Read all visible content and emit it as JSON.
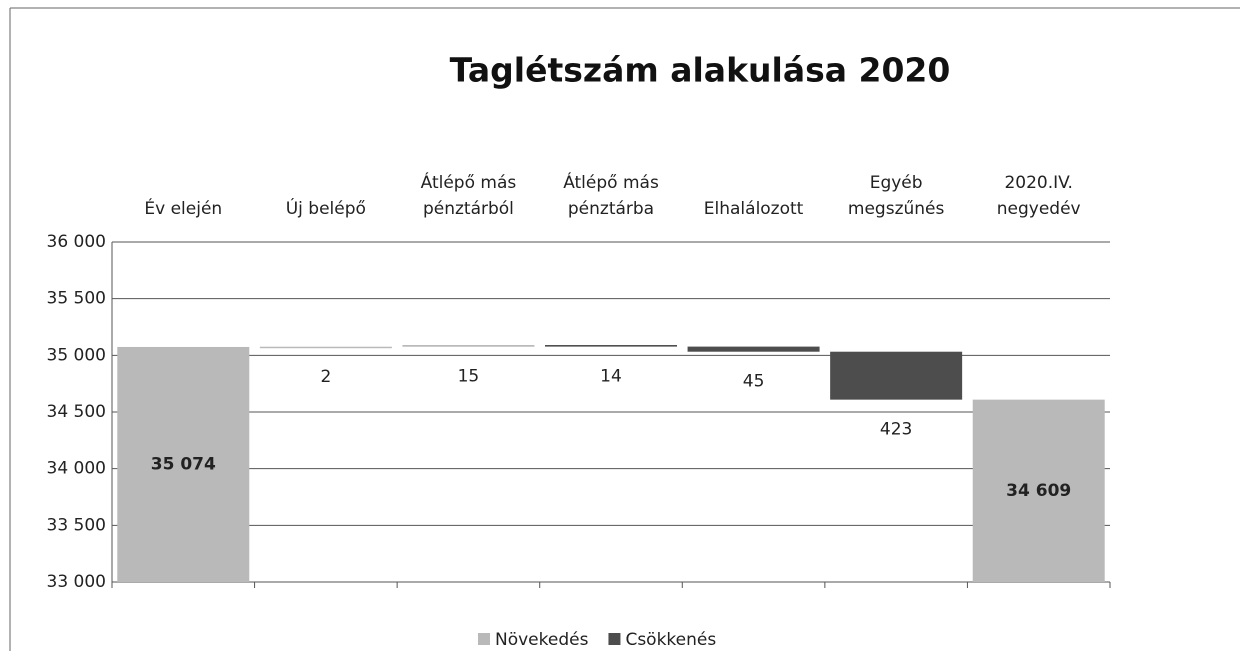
{
  "chart_data": {
    "type": "waterfall",
    "title": "Taglétszám alakulása 2020",
    "categories": [
      "Év elején",
      "Új belépő",
      "Átlépő más pénztárból",
      "Átlépő más pénztárba",
      "Elhalálozott",
      "Egyéb megszűnés",
      "2020.IV. negyedév"
    ],
    "values": [
      35074,
      2,
      15,
      14,
      45,
      423,
      34609
    ],
    "value_labels": [
      "35 074",
      "2",
      "15",
      "14",
      "45",
      "423",
      "34 609"
    ],
    "kinds": [
      "total",
      "increase",
      "increase",
      "decrease",
      "decrease",
      "decrease",
      "total"
    ],
    "legend": [
      {
        "name": "Növekedés",
        "color": "#b9b9b9"
      },
      {
        "name": "Csökkenés",
        "color": "#4d4d4d"
      }
    ],
    "ylim": [
      33000,
      36000
    ],
    "yticks": [
      {
        "value": 33000,
        "label": "33 000"
      },
      {
        "value": 33500,
        "label": "33 500"
      },
      {
        "value": 34000,
        "label": "34 000"
      },
      {
        "value": 34500,
        "label": "34 500"
      },
      {
        "value": 35000,
        "label": "35 000"
      },
      {
        "value": 35500,
        "label": "35 500"
      },
      {
        "value": 36000,
        "label": "36 000"
      }
    ],
    "grid": true
  }
}
